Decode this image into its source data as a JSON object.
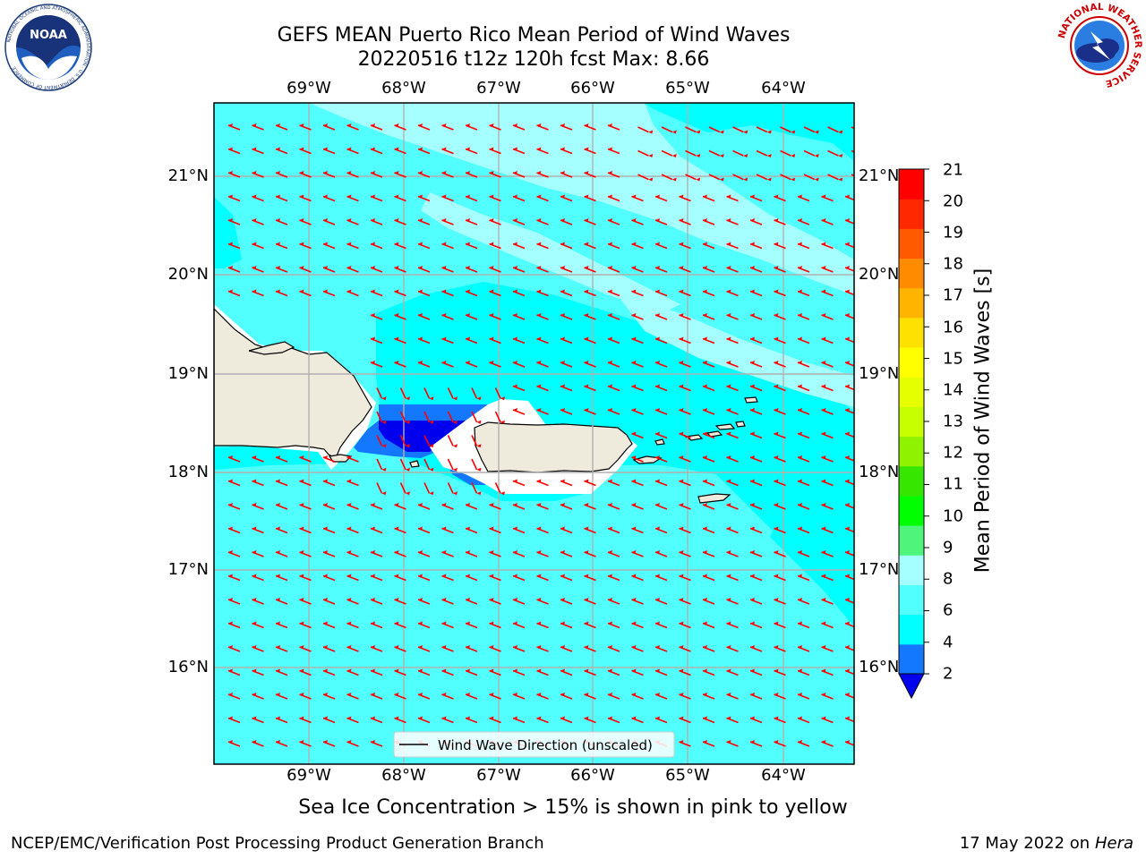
{
  "title": {
    "line1": "GEFS MEAN Puerto Rico Mean Period of Wind Waves",
    "line2": "20220516 t12z 120h fcst   Max: 8.66"
  },
  "lon_labels": [
    "69°W",
    "68°W",
    "67°W",
    "66°W",
    "65°W",
    "64°W"
  ],
  "lat_labels": [
    "21°N",
    "20°N",
    "19°N",
    "18°N",
    "17°N",
    "16°N"
  ],
  "colorbar": {
    "label": "Mean Period of Wind Waves [s]",
    "ticks": [
      "2",
      "4",
      "6",
      "8",
      "9",
      "10",
      "11",
      "12",
      "13",
      "14",
      "15",
      "16",
      "17",
      "18",
      "19",
      "20",
      "21"
    ],
    "colors": [
      "#0000ee",
      "#1478ff",
      "#00ffff",
      "#52ffff",
      "#a6ffff",
      "#4ef57a",
      "#00ff00",
      "#37e600",
      "#8ef200",
      "#c8ff00",
      "#e6ff00",
      "#ffff00",
      "#ffe100",
      "#ffb400",
      "#ff8c00",
      "#ff5a00",
      "#ff2800",
      "#ff0000"
    ],
    "extend_color": "#0000ee"
  },
  "legend": {
    "text": "Wind Wave Direction (unscaled)"
  },
  "caption": "Sea Ice Concentration > 15% is shown in pink to yellow",
  "footer": {
    "left": "NCEP/EMC/Verification Post Processing Product Generation Branch",
    "right_date": "17 May 2022 on",
    "right_host": "Hera"
  },
  "logos": {
    "noaa": {
      "icon": "noaa-logo",
      "center_text": "NOAA",
      "ring_text": "NATIONAL OCEANIC AND ATMOSPHERIC ADMINISTRATION · U.S. DEPARTMENT OF COMMERCE"
    },
    "nws": {
      "icon": "nws-logo",
      "ring_text": "NATIONAL WEATHER SERVICE"
    }
  },
  "map_colors": {
    "ocean_6_8": "#52ffff",
    "ocean_4_6": "#00ffff",
    "ocean_8_9": "#a6ffff",
    "ocean_2_4": "#1478ff",
    "ocean_lt2": "#0000ee",
    "land": "#eeeadc",
    "arrows": "#ff0000",
    "grid": "#b0b0b0"
  }
}
